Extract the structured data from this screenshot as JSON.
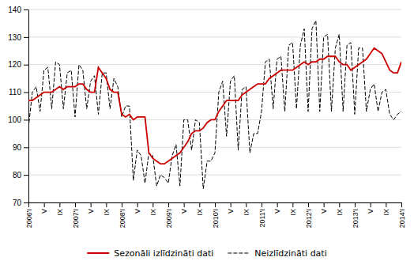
{
  "chart_data": {
    "type": "line",
    "categories": [
      "2006'I",
      null,
      null,
      null,
      "V",
      null,
      null,
      null,
      "IX",
      null,
      null,
      null,
      "2007'I",
      null,
      null,
      null,
      "V",
      null,
      null,
      null,
      "IX",
      null,
      null,
      null,
      "2008'I",
      null,
      null,
      null,
      "V",
      null,
      null,
      null,
      "IX",
      null,
      null,
      null,
      "2009'I",
      null,
      null,
      null,
      "V",
      null,
      null,
      null,
      "IX",
      null,
      null,
      null,
      "2010'I",
      null,
      null,
      null,
      "V",
      null,
      null,
      null,
      "IX",
      null,
      null,
      null,
      "2011'I",
      null,
      null,
      null,
      "V",
      null,
      null,
      null,
      "IX",
      null,
      null,
      null,
      "2012'I",
      null,
      null,
      null,
      "V",
      null,
      null,
      null,
      "IX",
      null,
      null,
      null,
      "2013'I",
      null,
      null,
      null,
      "V",
      null,
      null,
      null,
      "IX",
      null,
      null,
      null,
      "2014'I"
    ],
    "series": [
      {
        "name": "Sezonāli izlīdzināti dati",
        "color": "#cc0000",
        "line_style": "solid",
        "values": [
          107,
          107,
          108,
          109,
          110,
          110,
          110,
          111,
          112,
          111,
          112,
          112,
          112,
          113,
          113,
          111,
          110,
          110,
          119,
          117,
          115,
          111,
          110,
          110,
          102,
          101,
          102,
          100,
          101,
          101,
          101,
          88,
          86,
          85,
          84,
          84,
          85,
          86,
          87,
          88,
          90,
          92,
          95,
          96,
          96,
          97,
          99,
          100,
          100,
          103,
          105,
          107,
          107,
          107,
          107,
          109,
          110,
          111,
          112,
          113,
          113,
          113,
          115,
          116,
          117,
          118,
          118,
          118,
          118,
          119,
          120,
          121,
          120,
          121,
          121,
          122,
          122,
          123,
          123,
          123,
          121,
          120,
          120,
          118,
          119,
          120,
          121,
          122,
          124,
          126,
          125,
          124,
          121,
          118,
          117,
          117,
          121
        ]
      },
      {
        "name": "Neizlīdzināti dati",
        "color": "#000000",
        "line_style": "dashed",
        "values": [
          97,
          110,
          112,
          103,
          118,
          119,
          104,
          121,
          120,
          104,
          117,
          118,
          101,
          120,
          118,
          104,
          114,
          116,
          102,
          117,
          117,
          104,
          115,
          112,
          101,
          105,
          105,
          78,
          89,
          87,
          77,
          88,
          87,
          76,
          80,
          79,
          77,
          87,
          91,
          76,
          100,
          100,
          89,
          100,
          99,
          75,
          85,
          85,
          88,
          110,
          114,
          94,
          114,
          116,
          89,
          111,
          112,
          88,
          95,
          95,
          103,
          121,
          122,
          104,
          122,
          123,
          103,
          127,
          128,
          104,
          127,
          133,
          103,
          133,
          136,
          103,
          130,
          131,
          103,
          126,
          131,
          103,
          127,
          128,
          102,
          126,
          126,
          103,
          111,
          113,
          103,
          110,
          111,
          102,
          100,
          102,
          103
        ]
      }
    ],
    "ylim": [
      70,
      140
    ],
    "yticks": [
      70,
      80,
      90,
      100,
      110,
      120,
      130,
      140
    ],
    "grid": true,
    "legend": "bottom"
  }
}
